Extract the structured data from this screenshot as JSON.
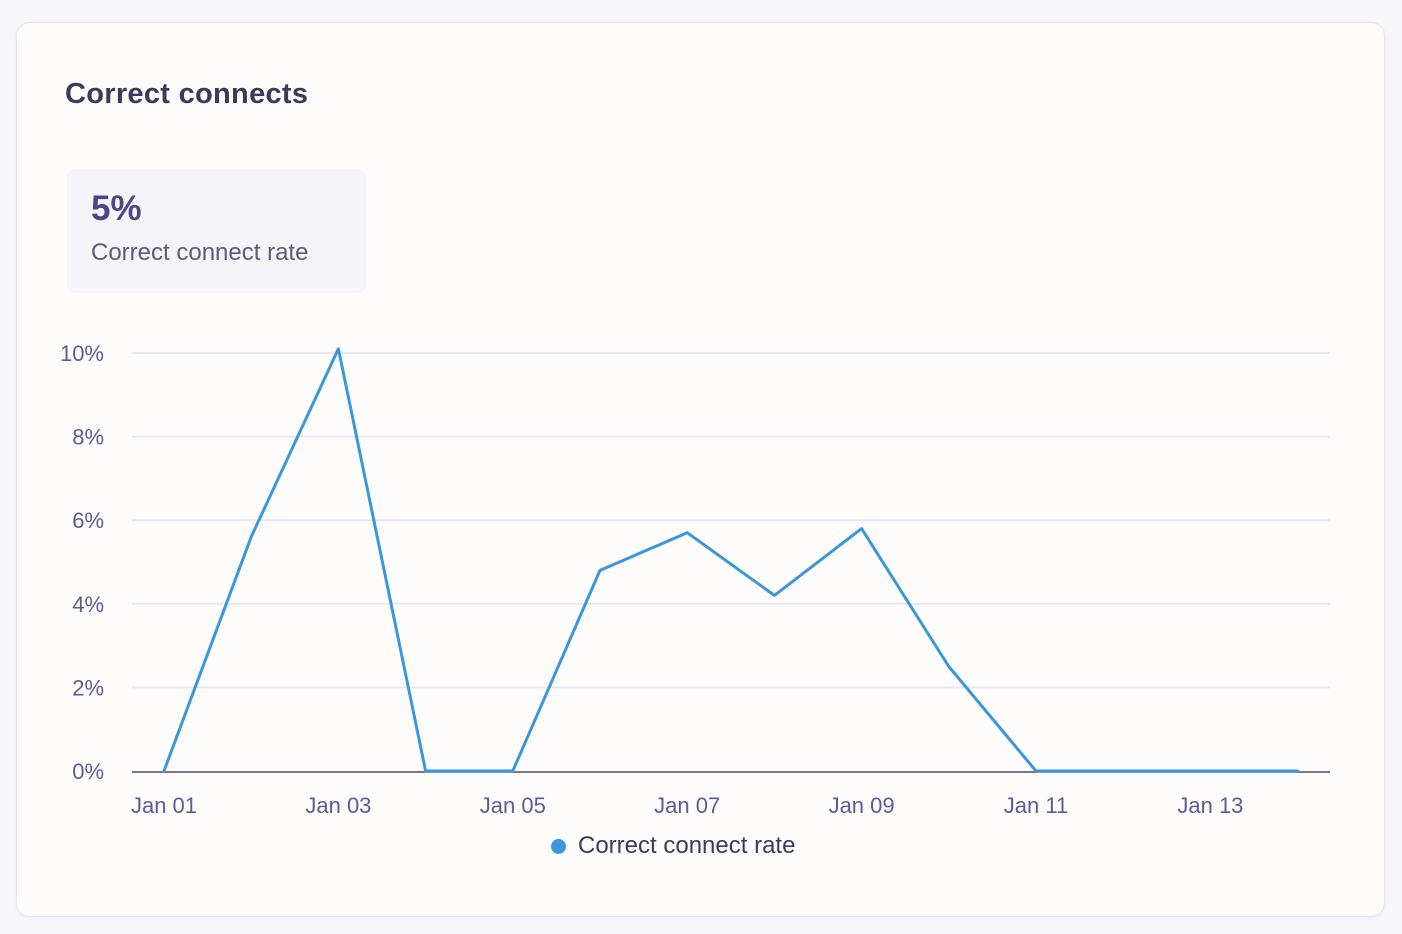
{
  "card": {
    "title": "Correct connects"
  },
  "summary": {
    "value": "5%",
    "label": "Correct connect rate"
  },
  "chart_data": {
    "type": "line",
    "title": "",
    "xlabel": "",
    "ylabel": "",
    "x": [
      "Jan 01",
      "Jan 02",
      "Jan 03",
      "Jan 04",
      "Jan 05",
      "Jan 06",
      "Jan 07",
      "Jan 08",
      "Jan 09",
      "Jan 10",
      "Jan 11",
      "Jan 12",
      "Jan 13",
      "Jan 14"
    ],
    "x_tick_labels": [
      "Jan 01",
      "Jan 03",
      "Jan 05",
      "Jan 07",
      "Jan 09",
      "Jan 11",
      "Jan 13"
    ],
    "y_tick_labels": [
      "0%",
      "2%",
      "4%",
      "6%",
      "8%",
      "10%"
    ],
    "y_ticks": [
      0,
      2,
      4,
      6,
      8,
      10
    ],
    "ylim": [
      0,
      10
    ],
    "grid": true,
    "legend_position": "bottom-center",
    "series": [
      {
        "name": "Correct connect rate",
        "color": "#3a97dc",
        "values": [
          0,
          5.6,
          10.1,
          0,
          0,
          4.8,
          5.7,
          4.2,
          5.8,
          2.5,
          0,
          0,
          0,
          0
        ]
      }
    ]
  },
  "colors": {
    "line": "#3a97dc",
    "grid": "#e8e7f1",
    "axis": "#4b4a63",
    "tick_text": "#5d5a9c"
  }
}
